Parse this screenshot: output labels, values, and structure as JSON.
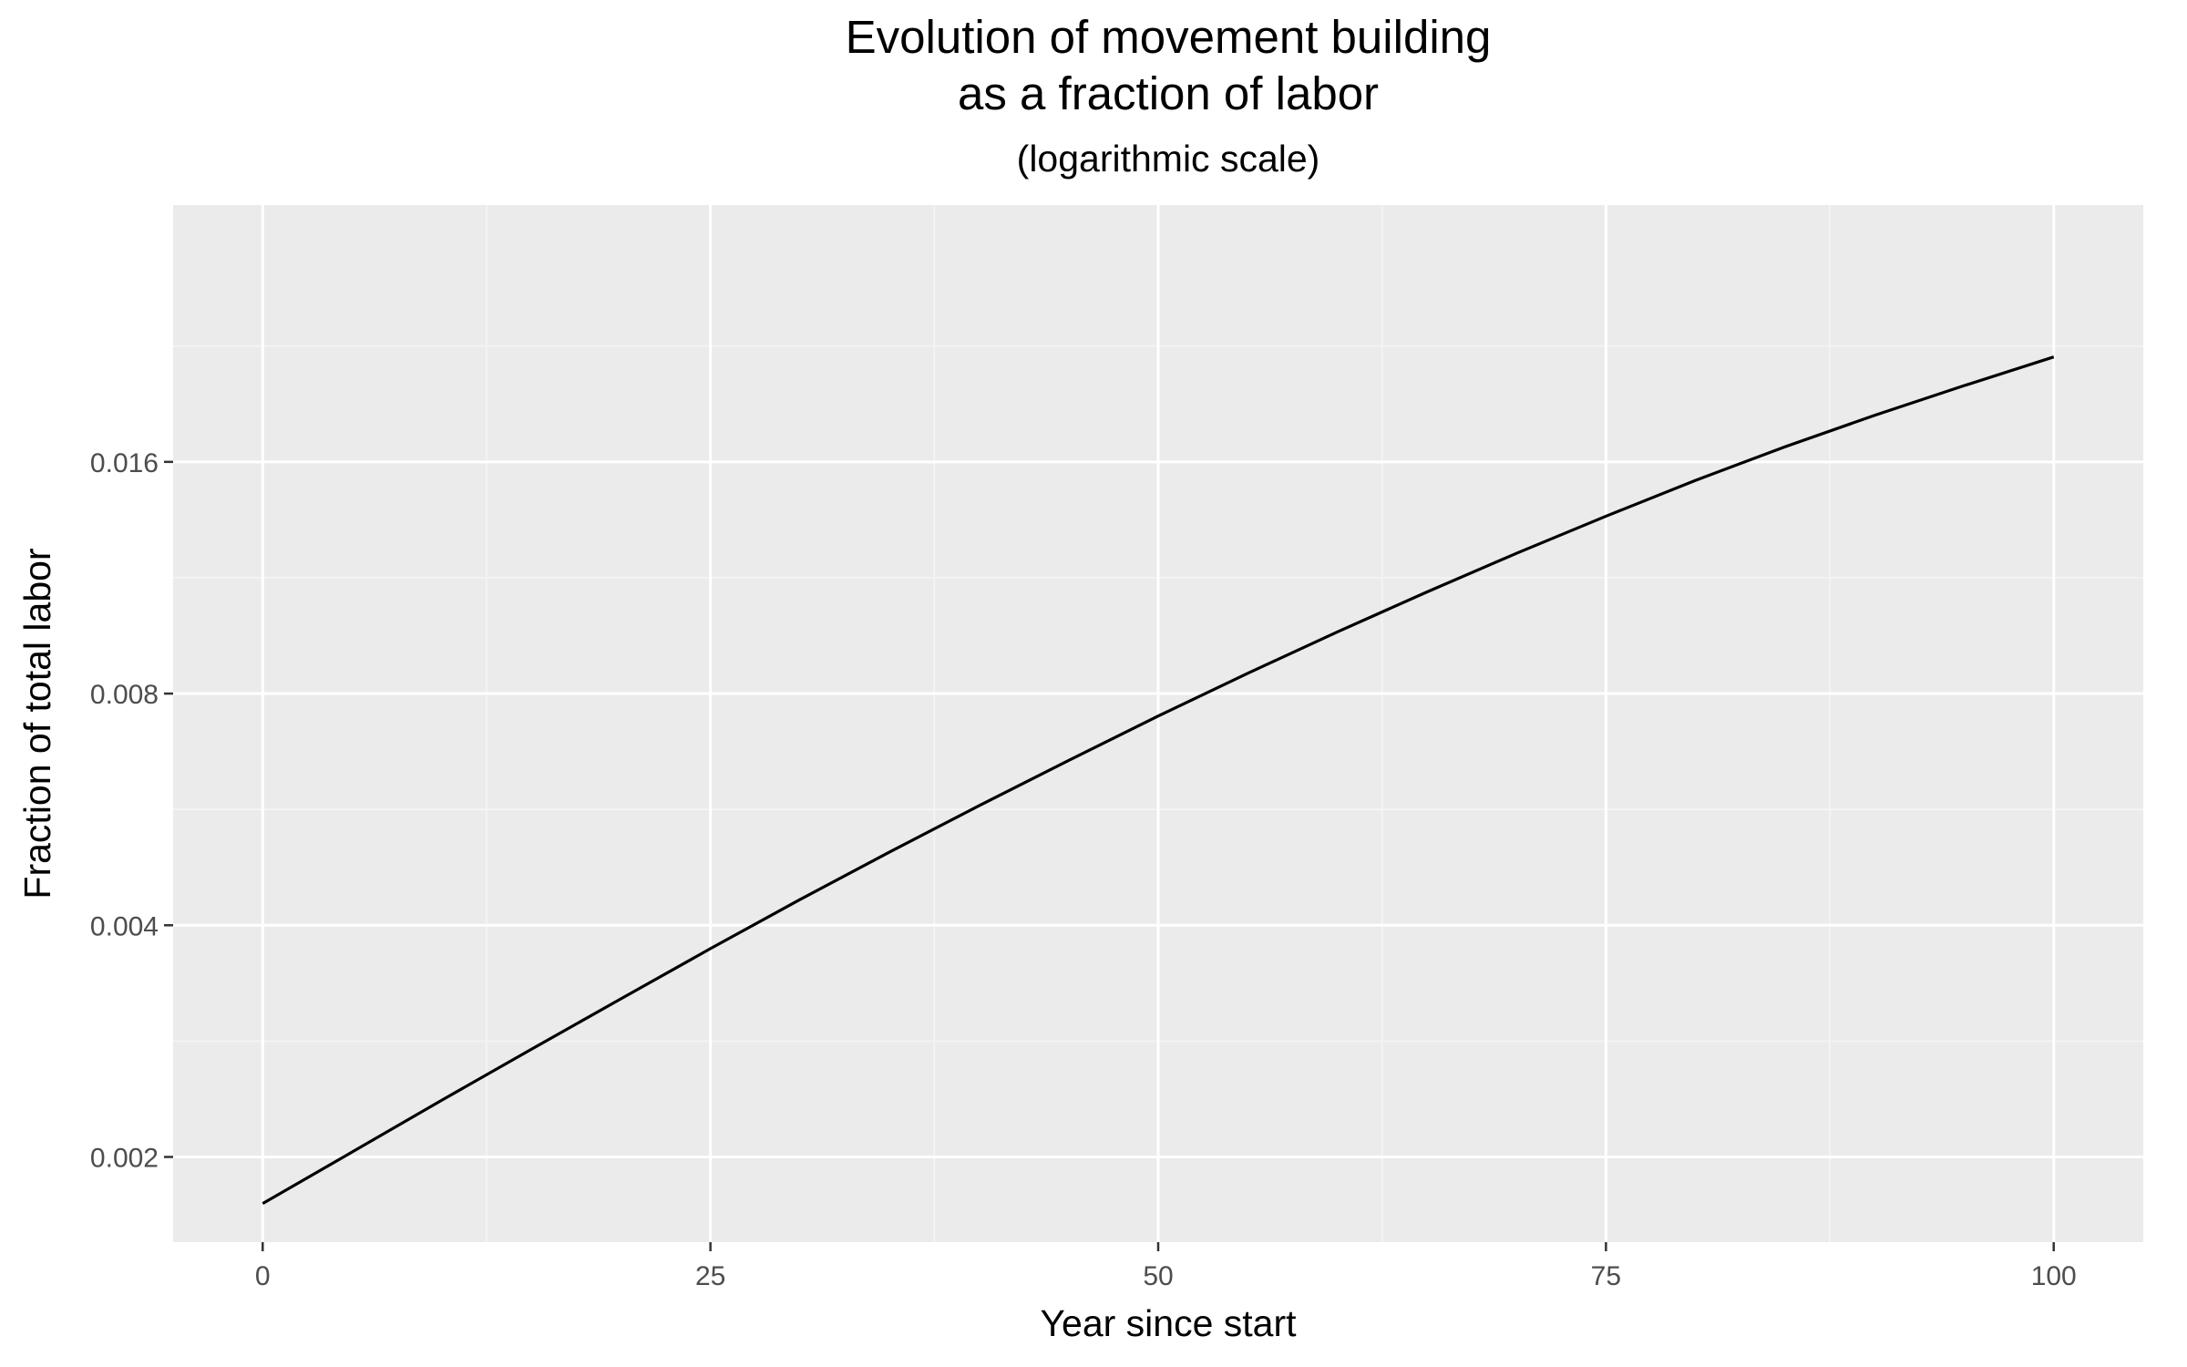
{
  "chart_data": {
    "type": "line",
    "title_lines": [
      "Evolution of movement building",
      "as a fraction of labor"
    ],
    "subtitle": "(logarithmic scale)",
    "xlabel": "Year since start",
    "ylabel": "Fraction of total labor",
    "x_scale": "linear",
    "y_scale": "log",
    "xlim": [
      -5,
      105
    ],
    "ylim": [
      0.00155,
      0.0345
    ],
    "x_ticks": [
      0,
      25,
      50,
      75,
      100
    ],
    "x_tick_labels": [
      "0",
      "25",
      "50",
      "75",
      "100"
    ],
    "y_ticks": [
      0.002,
      0.004,
      0.008,
      0.016
    ],
    "y_tick_labels": [
      "0.002",
      "0.004",
      "0.008",
      "0.016"
    ],
    "grid": true,
    "legend": "none",
    "series": [
      {
        "color": "#000000",
        "x": [
          0,
          5,
          10,
          15,
          20,
          25,
          30,
          35,
          40,
          45,
          50,
          55,
          60,
          65,
          70,
          75,
          80,
          85,
          90,
          95,
          100
        ],
        "y": [
          0.00174,
          0.00203,
          0.00237,
          0.00276,
          0.00321,
          0.00373,
          0.00432,
          0.00498,
          0.00572,
          0.00655,
          0.00748,
          0.0085,
          0.00962,
          0.01084,
          0.01217,
          0.0136,
          0.01514,
          0.01674,
          0.01839,
          0.0201,
          0.0219
        ]
      }
    ]
  },
  "colors": {
    "panel_background": "#ebebeb",
    "grid_major": "#ffffff",
    "grid_minor": "#f5f5f5",
    "line": "#000000",
    "tick_label": "#4d4d4d",
    "tick_mark": "#333333"
  }
}
